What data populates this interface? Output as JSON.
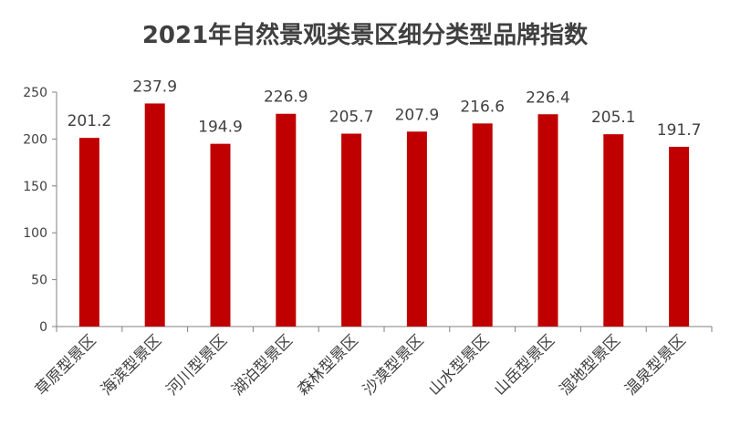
{
  "chart_data": {
    "type": "bar",
    "title": "2021年自然景观类景区细分类型品牌指数",
    "categories": [
      "草原型景区",
      "海滨型景区",
      "河川型景区",
      "湖泊型景区",
      "森林型景区",
      "沙漠型景区",
      "山水型景区",
      "山岳型景区",
      "湿地型景区",
      "温泉型景区"
    ],
    "values": [
      201.2,
      237.9,
      194.9,
      226.9,
      205.7,
      207.9,
      216.6,
      226.4,
      205.1,
      191.7
    ],
    "data_labels": [
      "201.2",
      "237.9",
      "194.9",
      "226.9",
      "205.7",
      "207.9",
      "216.6",
      "226.4",
      "205.1",
      "191.7"
    ],
    "y_ticks": [
      "0",
      "50",
      "100",
      "150",
      "200",
      "250"
    ],
    "ylim": [
      0,
      250
    ],
    "xlabel": "",
    "ylabel": "",
    "bar_color": "#c00000",
    "grid": false,
    "legend": "none"
  }
}
